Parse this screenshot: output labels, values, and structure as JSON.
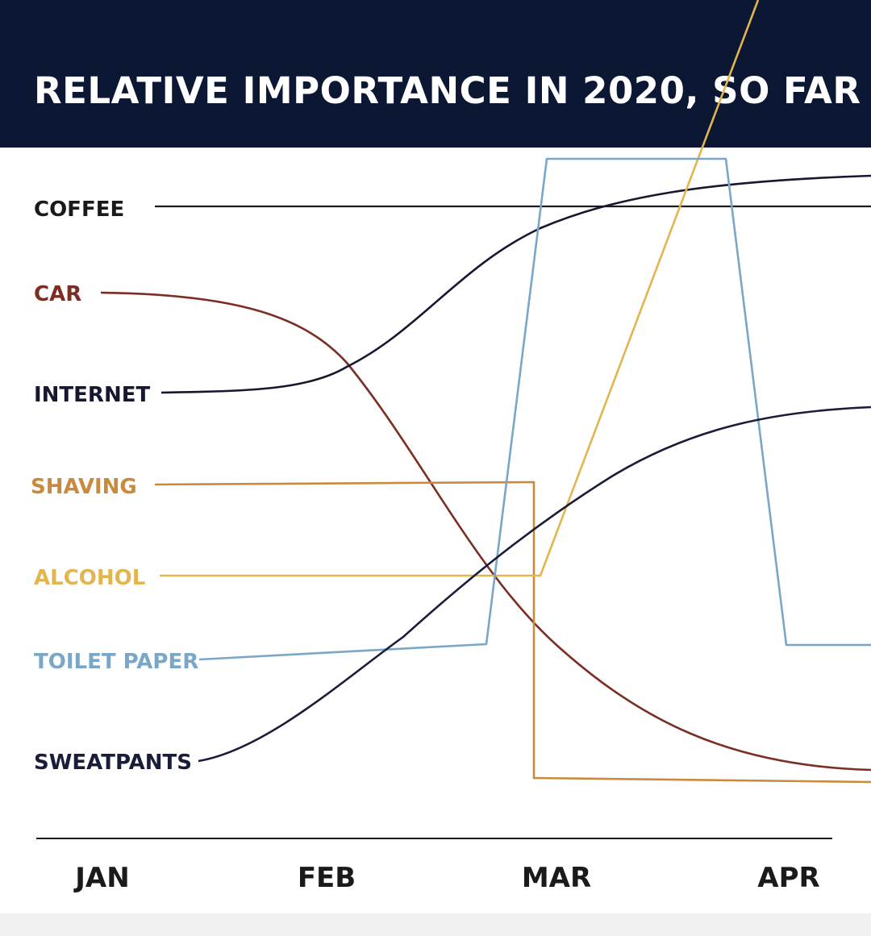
{
  "title": "RELATIVE IMPORTANCE IN 2020, SO FAR",
  "colors": {
    "header_bg": "#0b1733",
    "coffee": "#1a1a1a",
    "car": "#7a2e24",
    "internet": "#15182e",
    "shaving": "#c98a3e",
    "alcohol": "#e2b54e",
    "toilet_paper": "#7aa6c8",
    "sweatpants": "#1a1d3a"
  },
  "chart_data": {
    "type": "line",
    "title": "RELATIVE IMPORTANCE IN 2020, SO FAR",
    "x_ticks": [
      "JAN",
      "FEB",
      "MAR",
      "APR"
    ],
    "y_ticks": [],
    "grid": false,
    "series": [
      {
        "name": "COFFEE",
        "color_key": "coffee",
        "shape": "flat",
        "points": [
          [
            "JAN",
            7
          ],
          [
            "APR",
            7
          ]
        ]
      },
      {
        "name": "CAR",
        "color_key": "car",
        "shape": "smooth",
        "points": [
          [
            "JAN",
            6
          ],
          [
            "FEB",
            5.3
          ],
          [
            "MAR",
            2.2
          ],
          [
            "APR",
            0.1
          ]
        ]
      },
      {
        "name": "INTERNET",
        "color_key": "internet",
        "shape": "smooth",
        "points": [
          [
            "JAN",
            5
          ],
          [
            "FEB",
            5.3
          ],
          [
            "MAR",
            6.8
          ],
          [
            "APR",
            7.3
          ]
        ]
      },
      {
        "name": "SHAVING",
        "color_key": "shaving",
        "shape": "step",
        "points": [
          [
            "JAN",
            4
          ],
          [
            "MAR",
            4
          ],
          [
            "MAR",
            0
          ],
          [
            "APR",
            0
          ]
        ]
      },
      {
        "name": "ALCOHOL",
        "color_key": "alcohol",
        "shape": "linear",
        "points": [
          [
            "JAN",
            3
          ],
          [
            "MAR",
            3
          ],
          [
            "APR",
            11
          ]
        ]
      },
      {
        "name": "TOILET PAPER",
        "color_key": "toilet_paper",
        "shape": "linear",
        "points": [
          [
            "JAN",
            2
          ],
          [
            "FEB",
            2.1
          ],
          [
            "MAR",
            2.2
          ],
          [
            "MAR",
            7.5
          ],
          [
            "APR",
            7.5
          ],
          [
            "APR",
            2
          ],
          [
            "APR",
            2
          ]
        ]
      },
      {
        "name": "SWEATPANTS",
        "color_key": "sweatpants",
        "shape": "smooth",
        "points": [
          [
            "JAN",
            1
          ],
          [
            "FEB",
            2.6
          ],
          [
            "MAR",
            4.4
          ],
          [
            "APR",
            5.1
          ]
        ]
      }
    ]
  }
}
